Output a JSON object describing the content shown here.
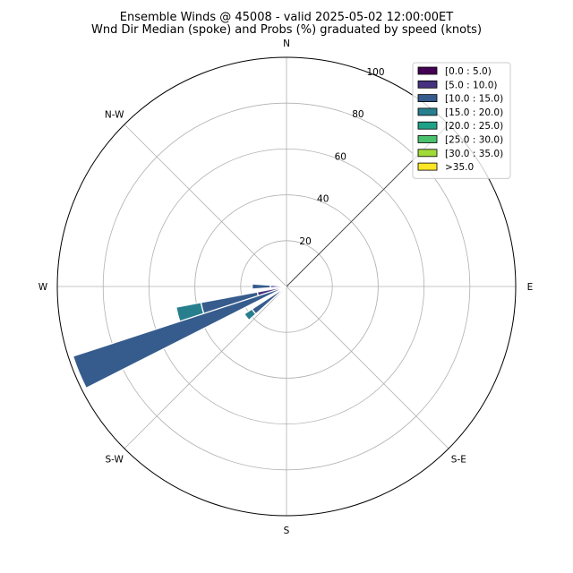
{
  "chart_data": {
    "type": "windrose",
    "title": "Ensemble Winds @ 45008 - valid 2025-05-02 12:00:00ET",
    "subtitle": "Wnd Dir Median (spoke) and Probs (%) graduated by speed (knots)",
    "direction_labels": [
      "N",
      "N-W",
      "W",
      "S-W",
      "S",
      "S-E",
      "E"
    ],
    "radial_ticks": [
      "20",
      "40",
      "60",
      "80",
      "100"
    ],
    "radial_tick_values": [
      20,
      40,
      60,
      80,
      100
    ],
    "rmax": 100,
    "grid": true,
    "legend_position": "top-right",
    "bins": [
      {
        "label": "[0.0 : 5.0)",
        "color": "#440154"
      },
      {
        "label": "[5.0 : 10.0)",
        "color": "#46327e"
      },
      {
        "label": "[10.0 : 15.0)",
        "color": "#365c8d"
      },
      {
        "label": "[15.0 : 20.0)",
        "color": "#277f8e"
      },
      {
        "label": "[20.0 : 25.0)",
        "color": "#1fa187"
      },
      {
        "label": "[25.0 : 30.0)",
        "color": "#4ac16d"
      },
      {
        "label": "[30.0 : 35.0)",
        "color": "#a0da39"
      },
      {
        "label": ">35.0",
        "color": "#fde725"
      }
    ],
    "sectors": [
      {
        "direction_deg": 270,
        "cumulative": [
          2,
          7,
          15,
          15
        ]
      },
      {
        "direction_deg": 255,
        "cumulative": [
          0.5,
          13,
          38,
          49
        ]
      },
      {
        "direction_deg": 247.5,
        "cumulative": [
          0.5,
          0.5,
          98,
          98
        ]
      },
      {
        "direction_deg": 232.5,
        "cumulative": [
          0.5,
          0.5,
          18,
          22
        ]
      }
    ],
    "median_direction_deg": 45
  }
}
